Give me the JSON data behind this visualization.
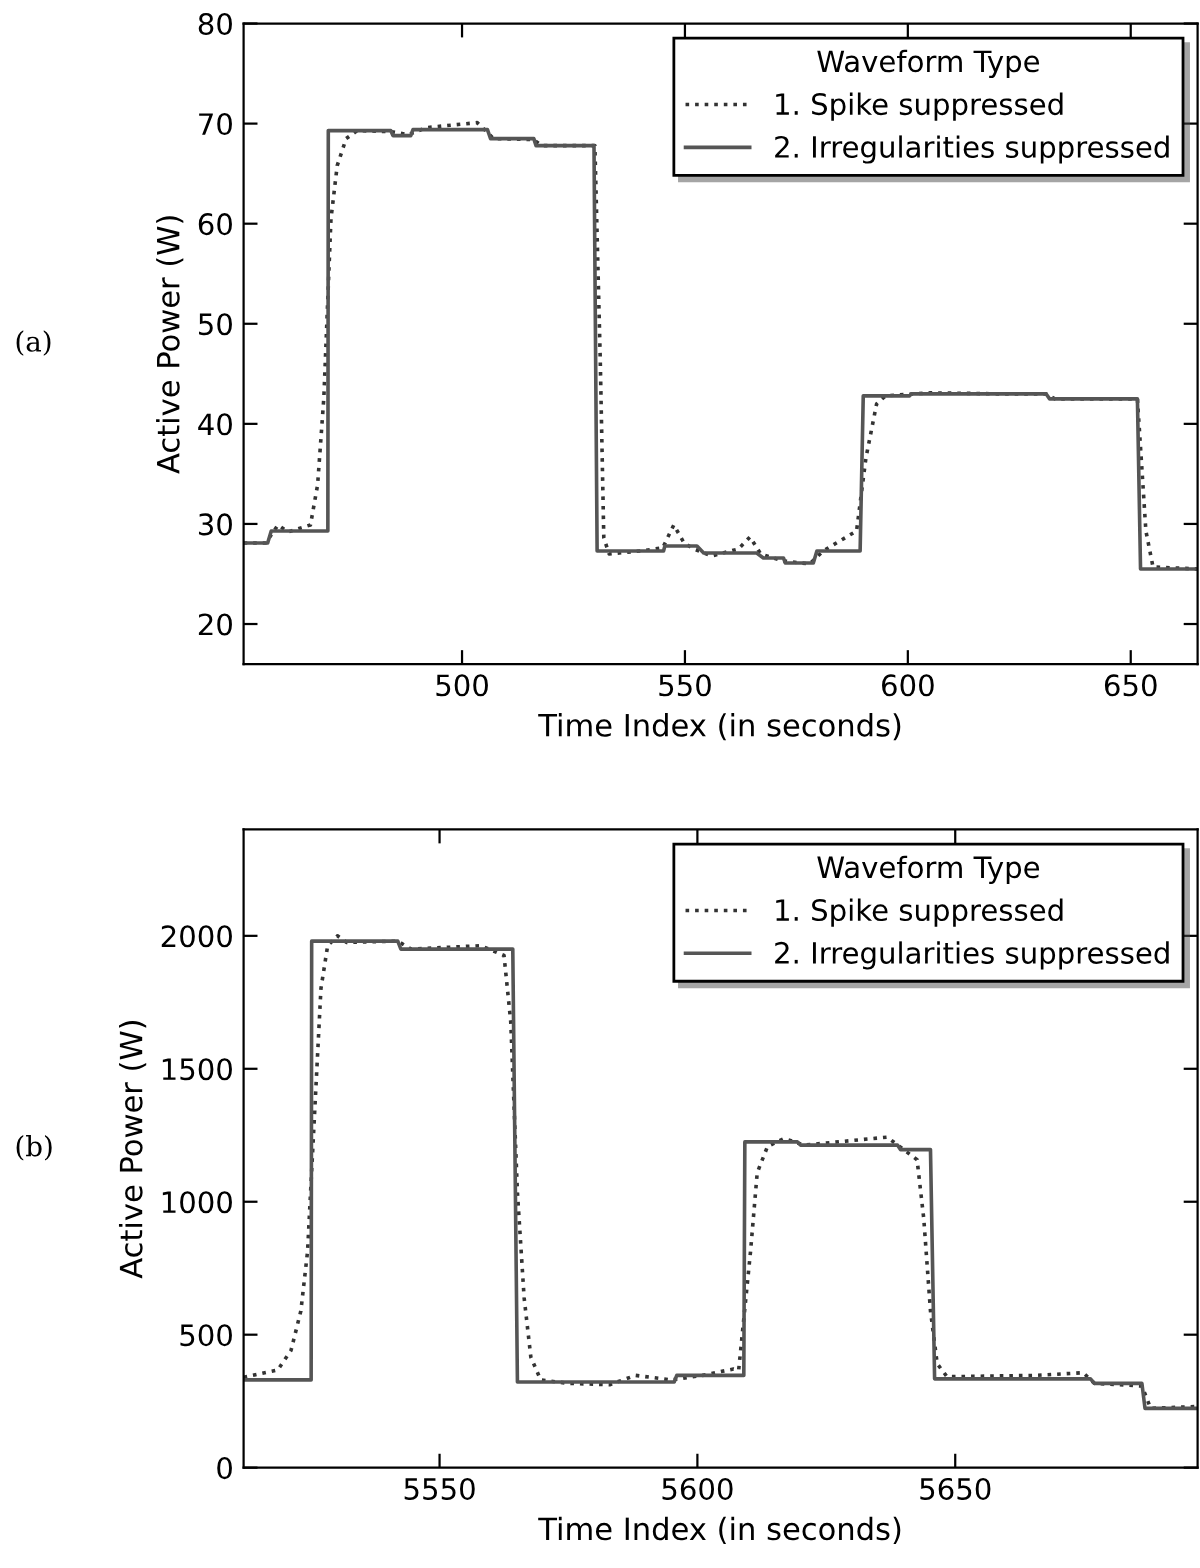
{
  "chart_data": [
    {
      "type": "line",
      "xlabel": "Time Index (in seconds)",
      "ylabel": "Active Power (W)",
      "legend_title": "Waveform Type",
      "legend": "top right",
      "grid": false,
      "xlim": [
        451,
        665
      ],
      "ylim": [
        16,
        80
      ],
      "xticks": [
        500,
        550,
        600,
        650
      ],
      "yticks": [
        20,
        30,
        40,
        50,
        60,
        70,
        80
      ],
      "annotations": [
        "(a)"
      ],
      "series": [
        {
          "name": "1. Spike suppressed",
          "color": "#333333",
          "line_style": "dotted",
          "x": [
            451,
            456,
            458.7,
            461,
            466,
            467.6,
            469,
            470.6,
            472,
            474,
            476.5,
            484,
            488,
            492,
            503.4,
            506,
            507,
            516,
            518,
            529.8,
            531,
            531.8,
            533,
            540,
            545,
            547.5,
            549.8,
            552,
            556,
            562,
            564.6,
            567,
            572,
            578,
            581,
            588.5,
            590.6,
            593,
            595,
            605,
            620,
            631,
            633,
            651.5,
            653.4,
            655,
            665
          ],
          "values": [
            28.1,
            28.1,
            29.9,
            29.2,
            29.9,
            33.9,
            42.6,
            60.5,
            65.8,
            68.5,
            69.3,
            69.2,
            68.9,
            69.6,
            70.1,
            69.0,
            68.5,
            68.4,
            67.8,
            67.8,
            46.5,
            28.6,
            27.0,
            27.3,
            27.6,
            29.9,
            28.1,
            27.5,
            26.8,
            27.5,
            28.7,
            27.0,
            26.3,
            26.0,
            27.3,
            29.3,
            36.6,
            42.0,
            42.8,
            43.1,
            43.0,
            43.0,
            42.5,
            42.5,
            29.3,
            25.7,
            25.5
          ]
        },
        {
          "name": "2. Irregularities suppressed",
          "color": "#555555",
          "line_style": "solid",
          "x": [
            451,
            456.4,
            457.2,
            469.9,
            470,
            484,
            484.5,
            488.5,
            489,
            505.7,
            506.4,
            516.1,
            516.6,
            529.6,
            530.3,
            545.2,
            545.5,
            552.7,
            554.2,
            566.1,
            567.6,
            572.1,
            572.5,
            578.8,
            579.6,
            589.3,
            590,
            600.4,
            600.8,
            631,
            631.8,
            651.5,
            652.2,
            665
          ],
          "values": [
            28.1,
            28.1,
            29.3,
            29.3,
            69.3,
            69.3,
            68.8,
            68.8,
            69.4,
            69.4,
            68.5,
            68.5,
            67.8,
            67.8,
            27.3,
            27.3,
            27.8,
            27.8,
            27.1,
            27.1,
            26.6,
            26.6,
            26.1,
            26.1,
            27.3,
            27.3,
            42.8,
            42.8,
            43.0,
            43.0,
            42.5,
            42.5,
            25.5,
            25.5
          ]
        }
      ]
    },
    {
      "type": "line",
      "xlabel": "Time Index (in seconds)",
      "ylabel": "Active Power (W)",
      "legend_title": "Waveform Type",
      "legend": "top right",
      "grid": false,
      "xlim": [
        5512,
        5697
      ],
      "ylim": [
        0,
        2400
      ],
      "xticks": [
        5550,
        5600,
        5650
      ],
      "yticks": [
        0,
        500,
        1000,
        1500,
        2000
      ],
      "annotations": [
        "(b)"
      ],
      "series": [
        {
          "name": "1. Spike suppressed",
          "color": "#333333",
          "line_style": "dotted",
          "x": [
            5512,
            5518.6,
            5521.2,
            5523.1,
            5524.4,
            5525.7,
            5527,
            5528.3,
            5530.2,
            5532,
            5541.9,
            5544.5,
            5558,
            5562.5,
            5563.8,
            5565.1,
            5566.4,
            5567.7,
            5569.6,
            5575,
            5583,
            5588,
            5595,
            5601,
            5607,
            5608,
            5610.3,
            5611.6,
            5613.6,
            5616.8,
            5620.7,
            5636.8,
            5640,
            5642.6,
            5643.9,
            5645.2,
            5646.5,
            5648.4,
            5665.7,
            5674.8,
            5677,
            5686.2,
            5687.9,
            5697
          ],
          "values": [
            340,
            367,
            441,
            589,
            812,
            1307,
            1802,
            1963,
            2000,
            1975,
            1980,
            1950,
            1963,
            1926,
            1678,
            1035,
            639,
            416,
            330,
            317,
            312,
            347,
            330,
            347,
            371,
            366,
            812,
            1109,
            1208,
            1238,
            1213,
            1243,
            1196,
            1158,
            936,
            589,
            391,
            342,
            347,
            357,
            317,
            307,
            223,
            230
          ]
        },
        {
          "name": "2. Irregularities suppressed",
          "color": "#555555",
          "line_style": "solid",
          "x": [
            5512,
            5525.1,
            5525.2,
            5541.9,
            5542.5,
            5564.2,
            5565.1,
            5595.5,
            5596,
            5609,
            5609.2,
            5619.4,
            5620,
            5638.8,
            5639.4,
            5645.2,
            5646,
            5676.2,
            5677,
            5686.2,
            5686.8,
            5697
          ],
          "values": [
            330,
            330,
            1980,
            1980,
            1950,
            1950,
            322,
            322,
            347,
            347,
            1225,
            1225,
            1213,
            1213,
            1196,
            1196,
            334,
            334,
            317,
            317,
            223,
            223
          ]
        }
      ]
    }
  ]
}
